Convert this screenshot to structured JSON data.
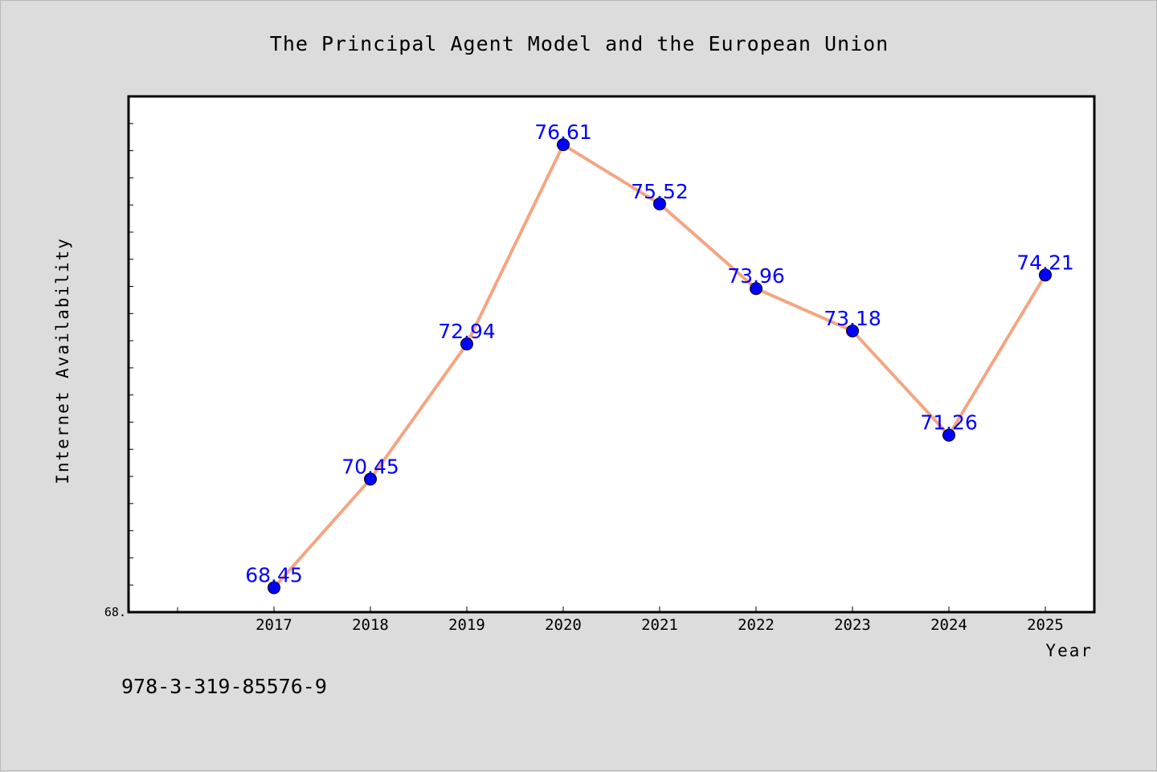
{
  "chart_data": {
    "type": "line",
    "title": "The Principal Agent Model and the European Union",
    "xlabel": "Year",
    "ylabel": "Internet Availability",
    "categories": [
      "2017",
      "2018",
      "2019",
      "2020",
      "2021",
      "2022",
      "2023",
      "2024",
      "2025"
    ],
    "values": [
      68.45,
      70.45,
      72.94,
      76.61,
      75.52,
      73.96,
      73.18,
      71.26,
      74.21
    ],
    "data_labels": [
      "68.45",
      "70.45",
      "72.94",
      "76.61",
      "75.52",
      "73.96",
      "73.18",
      "71.26",
      "74.21"
    ],
    "y_min_label": "68.",
    "ylim": [
      68.0,
      77.5
    ],
    "grid": false,
    "line_color": "#f4a582",
    "marker_color": "#0000ff",
    "label_color": "#0000ff"
  },
  "footer": {
    "isbn": "978-3-319-85576-9"
  }
}
